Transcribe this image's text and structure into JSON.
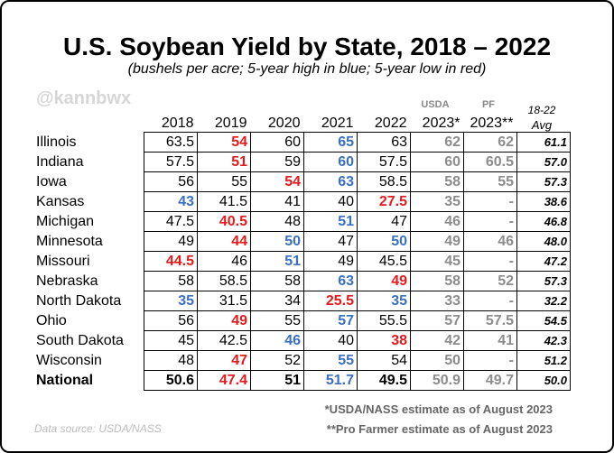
{
  "header": {
    "title": "U.S. Soybean Yield by State, 2018 – 2022",
    "subtitle": "(bushels per acre; 5-year high in blue; 5-year low in red)",
    "watermark": "@kannbwx"
  },
  "table": {
    "columns": [
      {
        "top": null,
        "label": "2018"
      },
      {
        "top": null,
        "label": "2019"
      },
      {
        "top": null,
        "label": "2020"
      },
      {
        "top": null,
        "label": "2021"
      },
      {
        "top": null,
        "label": "2022"
      },
      {
        "top": "USDA",
        "label": "2023*"
      },
      {
        "top": "PF",
        "label": "2023**"
      },
      {
        "top": "18-22",
        "label": "Avg"
      }
    ],
    "rows": [
      {
        "state": "Illinois",
        "cells": [
          "63.5",
          "54",
          "60",
          "65",
          "63",
          "62",
          "62",
          "61.1"
        ],
        "colors": [
          "#000",
          "#e41a1c",
          "#000",
          "#3a6fc4",
          "#000",
          "#8c8c8c",
          "#8c8c8c",
          "#000"
        ]
      },
      {
        "state": "Indiana",
        "cells": [
          "57.5",
          "51",
          "59",
          "60",
          "57.5",
          "60",
          "60.5",
          "57.0"
        ],
        "colors": [
          "#000",
          "#e41a1c",
          "#000",
          "#3a6fc4",
          "#000",
          "#8c8c8c",
          "#8c8c8c",
          "#000"
        ]
      },
      {
        "state": "Iowa",
        "cells": [
          "56",
          "55",
          "54",
          "63",
          "58.5",
          "58",
          "55",
          "57.3"
        ],
        "colors": [
          "#000",
          "#000",
          "#e41a1c",
          "#3a6fc4",
          "#000",
          "#8c8c8c",
          "#8c8c8c",
          "#000"
        ]
      },
      {
        "state": "Kansas",
        "cells": [
          "43",
          "41.5",
          "41",
          "40",
          "27.5",
          "35",
          "-",
          "38.6"
        ],
        "colors": [
          "#3a6fc4",
          "#000",
          "#000",
          "#000",
          "#e41a1c",
          "#8c8c8c",
          "#8c8c8c",
          "#000"
        ]
      },
      {
        "state": "Michigan",
        "cells": [
          "47.5",
          "40.5",
          "48",
          "51",
          "47",
          "46",
          "-",
          "46.8"
        ],
        "colors": [
          "#000",
          "#e41a1c",
          "#000",
          "#3a6fc4",
          "#000",
          "#8c8c8c",
          "#8c8c8c",
          "#000"
        ]
      },
      {
        "state": "Minnesota",
        "cells": [
          "49",
          "44",
          "50",
          "47",
          "50",
          "49",
          "46",
          "48.0"
        ],
        "colors": [
          "#000",
          "#e41a1c",
          "#3a6fc4",
          "#000",
          "#3a6fc4",
          "#8c8c8c",
          "#8c8c8c",
          "#000"
        ]
      },
      {
        "state": "Missouri",
        "cells": [
          "44.5",
          "46",
          "51",
          "49",
          "45.5",
          "45",
          "-",
          "47.2"
        ],
        "colors": [
          "#e41a1c",
          "#000",
          "#3a6fc4",
          "#000",
          "#000",
          "#8c8c8c",
          "#8c8c8c",
          "#000"
        ]
      },
      {
        "state": "Nebraska",
        "cells": [
          "58",
          "58.5",
          "58",
          "63",
          "49",
          "58",
          "52",
          "57.3"
        ],
        "colors": [
          "#000",
          "#000",
          "#000",
          "#3a6fc4",
          "#e41a1c",
          "#8c8c8c",
          "#8c8c8c",
          "#000"
        ]
      },
      {
        "state": "North Dakota",
        "cells": [
          "35",
          "31.5",
          "34",
          "25.5",
          "35",
          "33",
          "-",
          "32.2"
        ],
        "colors": [
          "#3a6fc4",
          "#000",
          "#000",
          "#e41a1c",
          "#3a6fc4",
          "#8c8c8c",
          "#8c8c8c",
          "#000"
        ]
      },
      {
        "state": "Ohio",
        "cells": [
          "56",
          "49",
          "55",
          "57",
          "55.5",
          "57",
          "57.5",
          "54.5"
        ],
        "colors": [
          "#000",
          "#e41a1c",
          "#000",
          "#3a6fc4",
          "#000",
          "#8c8c8c",
          "#8c8c8c",
          "#000"
        ]
      },
      {
        "state": "South Dakota",
        "cells": [
          "45",
          "42.5",
          "46",
          "40",
          "38",
          "42",
          "41",
          "42.3"
        ],
        "colors": [
          "#000",
          "#000",
          "#3a6fc4",
          "#000",
          "#e41a1c",
          "#8c8c8c",
          "#8c8c8c",
          "#000"
        ]
      },
      {
        "state": "Wisconsin",
        "cells": [
          "48",
          "47",
          "52",
          "55",
          "54",
          "50",
          "-",
          "51.2"
        ],
        "colors": [
          "#000",
          "#e41a1c",
          "#000",
          "#3a6fc4",
          "#000",
          "#8c8c8c",
          "#8c8c8c",
          "#000"
        ]
      },
      {
        "state": "National",
        "cells": [
          "50.6",
          "47.4",
          "51",
          "51.7",
          "49.5",
          "50.9",
          "49.7",
          "50.0"
        ],
        "colors": [
          "#000",
          "#e41a1c",
          "#000",
          "#3a6fc4",
          "#000",
          "#8c8c8c",
          "#8c8c8c",
          "#000"
        ],
        "bold": true
      }
    ]
  },
  "footnotes": [
    "*USDA/NASS estimate as of August 2023",
    "**Pro Farmer estimate as of August 2023"
  ],
  "source": "Data source: USDA/NASS"
}
